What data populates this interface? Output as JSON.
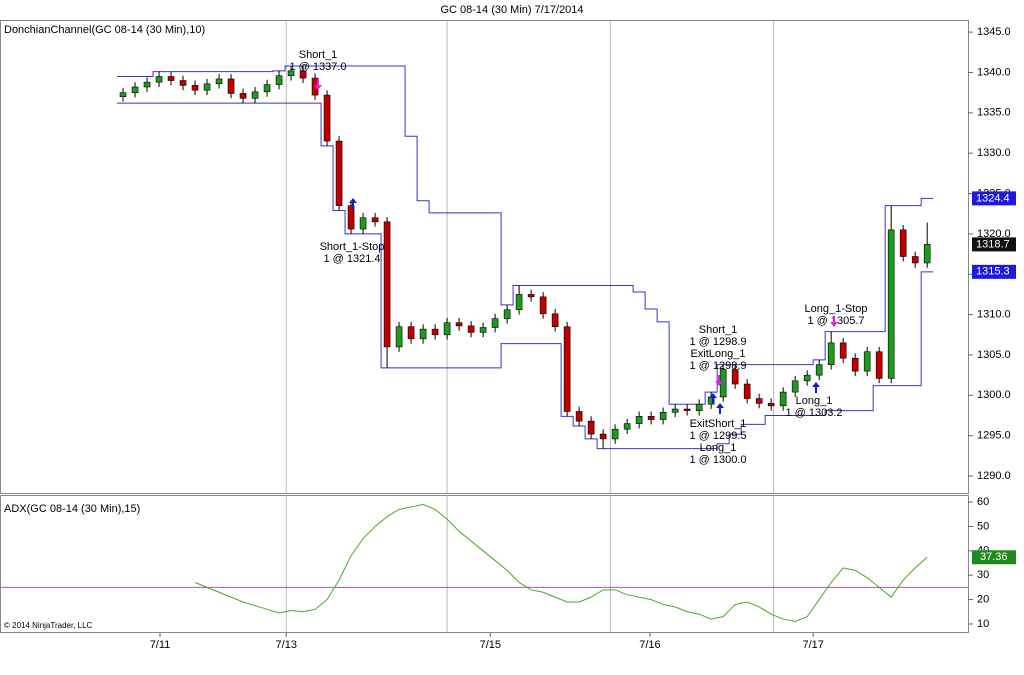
{
  "chart_data": [
    {
      "type": "candlestick",
      "title": "GC 08-14 (30 Min)  7/17/2014",
      "panel_label": "DonchianChannel(GC 08-14 (30 Min),10)",
      "copyright": "© 2014 NinjaTrader, LLC",
      "up_color": "#1f9a1f",
      "down_color": "#c00000",
      "open": [
        1337.0,
        1337.5,
        1338.2,
        1338.8,
        1339.5,
        1339.0,
        1338.4,
        1337.8,
        1338.6,
        1339.2,
        1337.4,
        1336.8,
        1337.6,
        1338.5,
        1339.6,
        1340.2,
        1339.3,
        1337.2,
        1331.5,
        1323.5,
        1320.6,
        1322.0,
        1321.5,
        1306.0,
        1308.5,
        1307.0,
        1308.2,
        1307.5,
        1309.0,
        1308.6,
        1307.8,
        1308.4,
        1309.5,
        1310.6,
        1312.5,
        1312.2,
        1310.1,
        1308.5,
        1298.0,
        1296.8,
        1295.2,
        1294.6,
        1295.8,
        1296.5,
        1297.4,
        1297.0,
        1297.9,
        1298.3,
        1298.1,
        1298.9,
        1299.8,
        1303.2,
        1301.4,
        1299.6,
        1299.0,
        1298.7,
        1300.4,
        1301.8,
        1302.5,
        1303.8,
        1306.5,
        1304.6,
        1303.0,
        1305.4,
        1302.1,
        1320.5,
        1317.2,
        1316.4
      ],
      "high": [
        1338.1,
        1338.8,
        1339.4,
        1340.1,
        1340.1,
        1339.6,
        1339.0,
        1339.2,
        1339.8,
        1339.8,
        1338.0,
        1338.2,
        1339.1,
        1340.2,
        1340.8,
        1340.8,
        1339.9,
        1337.8,
        1332.1,
        1324.1,
        1322.6,
        1322.6,
        1322.1,
        1309.1,
        1309.1,
        1308.8,
        1308.8,
        1309.6,
        1309.6,
        1309.2,
        1309.0,
        1310.1,
        1311.2,
        1313.6,
        1313.1,
        1312.8,
        1310.7,
        1309.1,
        1298.6,
        1297.4,
        1295.8,
        1296.4,
        1297.1,
        1298.0,
        1298.0,
        1298.5,
        1298.9,
        1298.9,
        1299.5,
        1300.4,
        1303.8,
        1303.8,
        1302.0,
        1300.2,
        1299.6,
        1301.0,
        1302.4,
        1303.1,
        1304.4,
        1307.9,
        1307.1,
        1305.2,
        1306.0,
        1306.0,
        1323.5,
        1321.1,
        1317.8,
        1321.4
      ],
      "low": [
        1336.4,
        1336.9,
        1337.6,
        1338.2,
        1338.4,
        1337.8,
        1337.2,
        1337.2,
        1338.0,
        1336.8,
        1336.2,
        1336.2,
        1337.0,
        1337.9,
        1339.0,
        1338.7,
        1336.6,
        1330.9,
        1322.9,
        1320.0,
        1320.0,
        1320.9,
        1303.4,
        1305.4,
        1306.4,
        1306.4,
        1306.9,
        1306.9,
        1308.0,
        1307.2,
        1307.2,
        1307.8,
        1308.9,
        1310.0,
        1311.6,
        1309.5,
        1307.9,
        1297.4,
        1296.2,
        1294.6,
        1293.4,
        1294.0,
        1295.2,
        1295.9,
        1296.4,
        1296.4,
        1297.3,
        1297.5,
        1297.5,
        1298.3,
        1299.2,
        1300.8,
        1299.0,
        1298.4,
        1298.1,
        1298.1,
        1299.8,
        1301.2,
        1301.9,
        1303.2,
        1304.0,
        1302.4,
        1302.4,
        1301.5,
        1301.5,
        1316.6,
        1315.8,
        1315.8
      ],
      "close": [
        1337.5,
        1338.2,
        1338.8,
        1339.5,
        1339.0,
        1338.4,
        1337.8,
        1338.6,
        1339.2,
        1337.4,
        1336.8,
        1337.6,
        1338.5,
        1339.6,
        1340.2,
        1339.3,
        1337.2,
        1331.5,
        1323.5,
        1320.6,
        1322.0,
        1321.5,
        1306.0,
        1308.5,
        1307.0,
        1308.2,
        1307.5,
        1309.0,
        1308.6,
        1307.8,
        1308.4,
        1309.5,
        1310.6,
        1312.5,
        1312.2,
        1310.1,
        1308.5,
        1298.0,
        1296.8,
        1295.2,
        1294.6,
        1295.8,
        1296.5,
        1297.4,
        1297.0,
        1297.9,
        1298.3,
        1298.1,
        1298.9,
        1299.8,
        1303.2,
        1301.4,
        1299.6,
        1299.0,
        1298.7,
        1300.4,
        1301.8,
        1302.5,
        1303.8,
        1306.5,
        1304.6,
        1303.0,
        1305.4,
        1302.1,
        1320.5,
        1317.2,
        1316.4,
        1318.7
      ],
      "bands": [
        {
          "color": "#3535c8",
          "values": [
            1339.5,
            1339.5,
            1339.5,
            1340.1,
            1340.1,
            1340.1,
            1340.1,
            1340.1,
            1340.1,
            1340.1,
            1340.1,
            1340.1,
            1340.1,
            1340.2,
            1340.8,
            1340.8,
            1340.8,
            1340.8,
            1340.8,
            1340.8,
            1340.8,
            1340.8,
            1340.8,
            1340.8,
            1332.1,
            1324.1,
            1322.6,
            1322.6,
            1322.6,
            1322.6,
            1322.6,
            1322.6,
            1311.2,
            1313.6,
            1313.6,
            1313.6,
            1313.6,
            1313.6,
            1313.6,
            1313.6,
            1313.6,
            1313.6,
            1313.6,
            1312.8,
            1310.7,
            1309.1,
            1298.9,
            1298.9,
            1298.9,
            1300.4,
            1303.8,
            1303.8,
            1303.8,
            1303.8,
            1303.8,
            1303.8,
            1303.8,
            1303.8,
            1304.4,
            1307.9,
            1307.9,
            1307.9,
            1307.9,
            1307.9,
            1323.5,
            1323.5,
            1323.5,
            1324.4
          ]
        },
        {
          "color": "#3535c8",
          "values": [
            1336.2,
            1336.2,
            1336.2,
            1336.2,
            1336.2,
            1336.2,
            1336.2,
            1336.2,
            1336.2,
            1336.2,
            1336.2,
            1336.2,
            1336.2,
            1336.2,
            1336.2,
            1336.2,
            1336.2,
            1330.9,
            1322.9,
            1320.0,
            1320.0,
            1320.0,
            1303.4,
            1303.4,
            1303.4,
            1303.4,
            1303.4,
            1303.4,
            1303.4,
            1303.4,
            1303.4,
            1303.4,
            1306.4,
            1306.4,
            1306.4,
            1306.4,
            1306.4,
            1297.4,
            1296.2,
            1294.6,
            1293.4,
            1293.4,
            1293.4,
            1293.4,
            1293.4,
            1293.4,
            1293.4,
            1293.4,
            1293.4,
            1293.4,
            1294.0,
            1295.2,
            1296.4,
            1296.4,
            1297.5,
            1297.5,
            1297.5,
            1297.5,
            1297.5,
            1298.1,
            1298.1,
            1298.1,
            1298.1,
            1301.2,
            1301.2,
            1301.2,
            1301.2,
            1315.3
          ]
        }
      ],
      "xlim": [
        -10.25,
        70.4
      ],
      "xticks": [
        {
          "value": 3.08,
          "label": "7/11"
        },
        {
          "value": 13.6,
          "label": "7/13"
        },
        {
          "value": 30.6,
          "label": "7/15"
        },
        {
          "value": 43.9,
          "label": "7/16"
        },
        {
          "value": 57.5,
          "label": "7/17"
        }
      ],
      "vlines": [
        13.6,
        27,
        40.6,
        54.2
      ],
      "ylim": [
        1287.9,
        1346.5
      ],
      "yticks": [
        {
          "value": 1290,
          "label": "1290.0"
        },
        {
          "value": 1295,
          "label": "1295.0"
        },
        {
          "value": 1300,
          "label": "1300.0"
        },
        {
          "value": 1305,
          "label": "1305.0"
        },
        {
          "value": 1310,
          "label": "1310.0"
        },
        {
          "value": 1315,
          "label": "1315.0"
        },
        {
          "value": 1320,
          "label": "1320.0"
        },
        {
          "value": 1325,
          "label": "1325.0"
        },
        {
          "value": 1330,
          "label": "1330.0"
        },
        {
          "value": 1335,
          "label": "1335.0"
        },
        {
          "value": 1340,
          "label": "1340.0"
        },
        {
          "value": 1345,
          "label": "1345.0"
        }
      ],
      "annotations": [
        [
          "Short_1",
          "1 @ 1337.0"
        ],
        [
          "Short_1-Stop",
          "1 @ 1321.4"
        ],
        [
          "Short_1",
          "1 @ 1298.9",
          "ExitLong_1",
          "1 @ 1298.9"
        ],
        [
          "ExitShort_1",
          "1 @ 1299.5",
          "Long_1",
          "1 @ 1300.0"
        ],
        [
          "Long_1-Stop",
          "1 @ 1305.7"
        ],
        [
          "Long_1",
          "1 @ 1303.2"
        ]
      ]
    },
    {
      "type": "line",
      "panel_label": "ADX(GC 08-14 (30 Min),15)",
      "color": "#44aa22",
      "values": [
        null,
        null,
        null,
        null,
        null,
        null,
        27,
        25,
        23,
        21,
        19,
        17.5,
        16,
        14.5,
        15.5,
        15,
        16,
        20,
        28,
        38,
        45,
        50,
        54,
        57,
        58,
        59,
        57,
        53,
        48,
        44,
        40,
        36,
        32,
        27,
        24,
        23,
        21,
        19,
        19,
        21,
        24,
        24,
        22,
        21,
        20,
        18,
        17,
        15,
        14,
        12,
        13,
        18,
        19,
        17,
        14,
        12,
        11,
        13,
        20,
        27,
        33,
        32,
        29,
        25,
        21,
        28,
        33,
        37.36
      ],
      "hline": 25,
      "hline_color": "#b050b0",
      "ylim": [
        6.7,
        62.9
      ],
      "yticks": [
        10,
        20,
        30,
        40,
        50,
        60
      ]
    }
  ]
}
